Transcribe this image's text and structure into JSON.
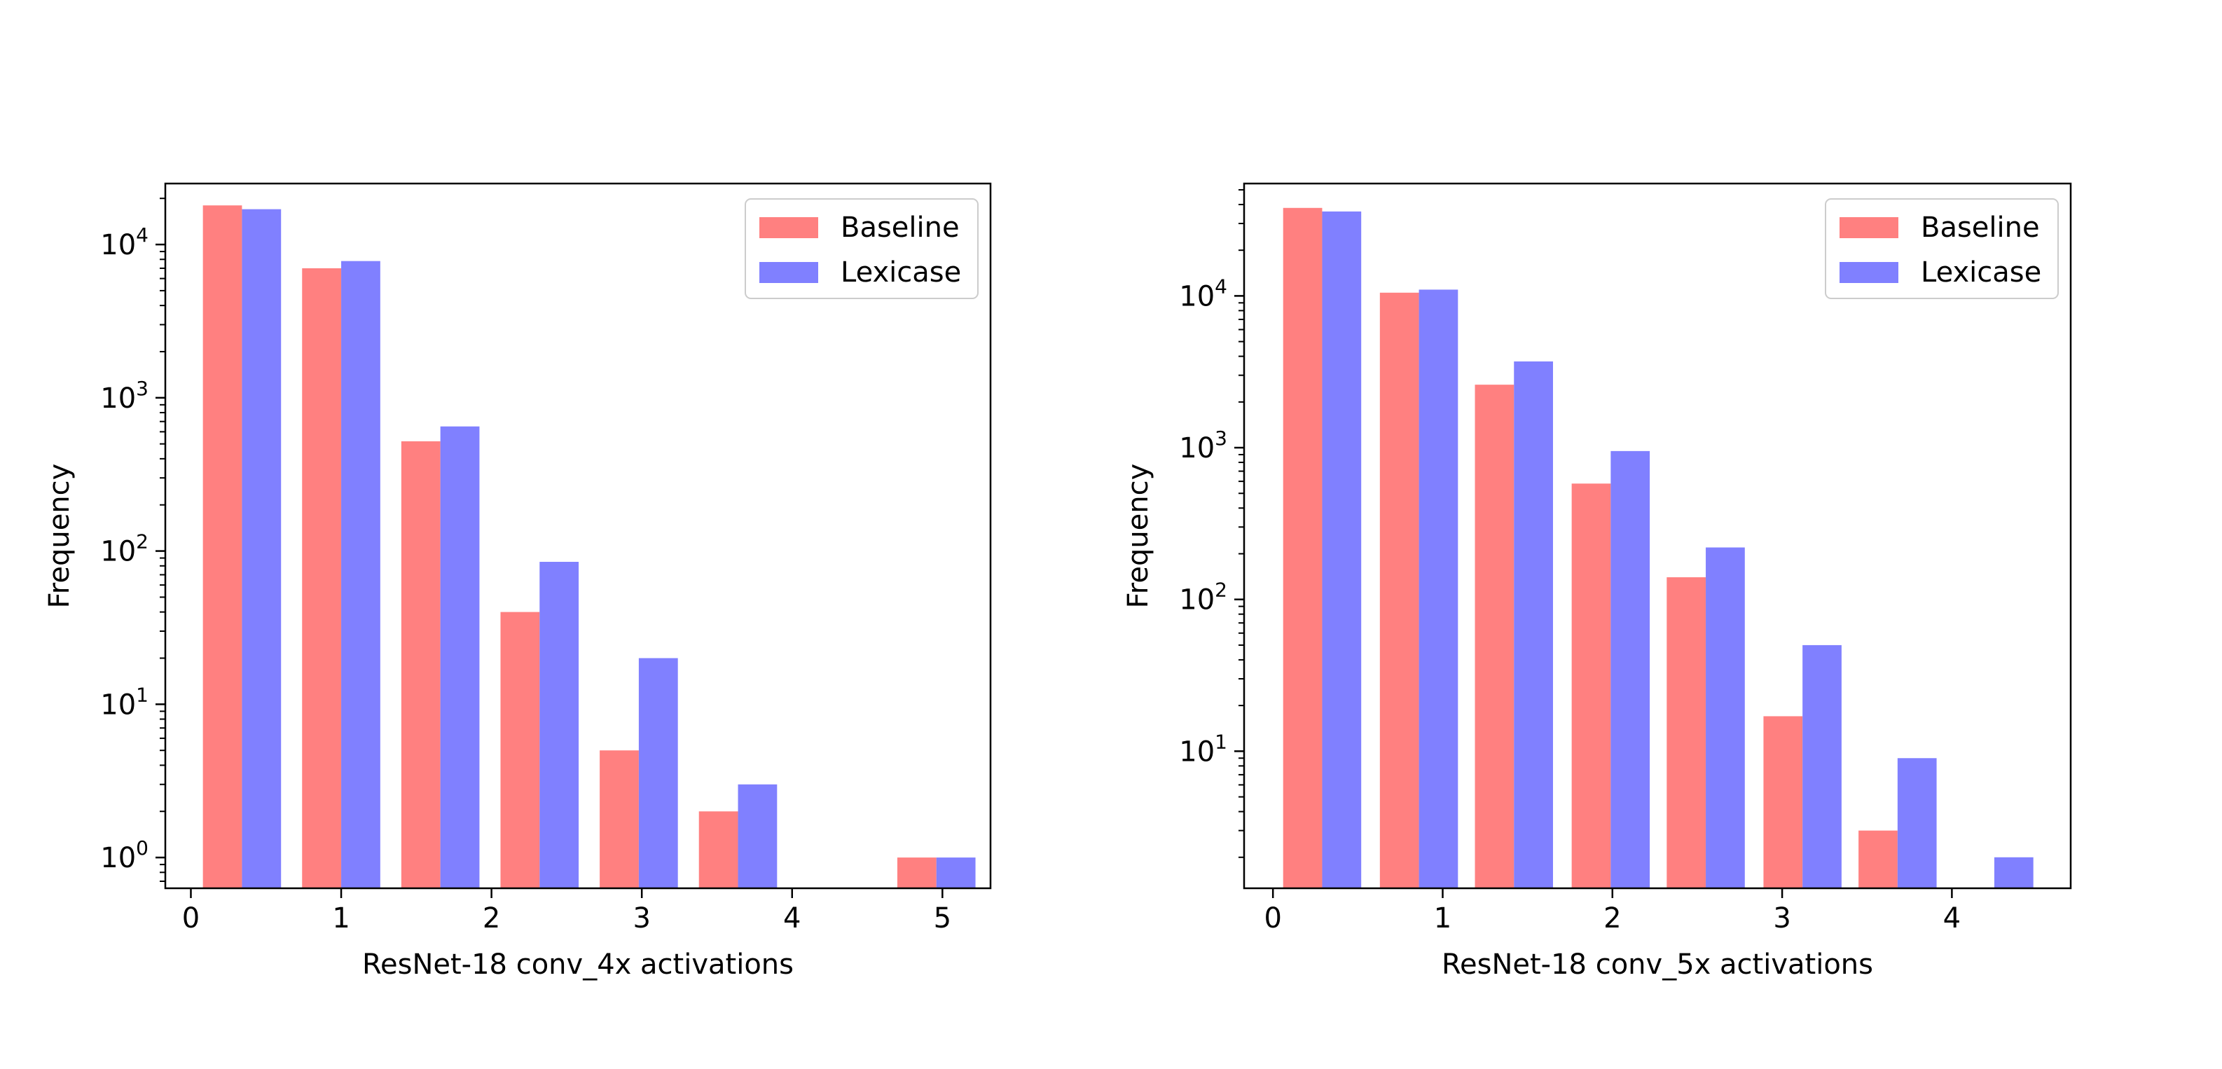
{
  "chart_data": [
    {
      "type": "bar",
      "xlabel": "ResNet-18 conv_4x activations",
      "ylabel": "Frequency",
      "yscale": "log",
      "ylim": [
        0.63,
        25000
      ],
      "xlim": [
        -0.17,
        5.32
      ],
      "bin_width": 0.52,
      "x_ticks": [
        0,
        1,
        2,
        3,
        4,
        5
      ],
      "y_ticks": [
        {
          "value": 1,
          "base": "10",
          "exp": "0"
        },
        {
          "value": 10,
          "base": "10",
          "exp": "1"
        },
        {
          "value": 100,
          "base": "10",
          "exp": "2"
        },
        {
          "value": 1000,
          "base": "10",
          "exp": "3"
        },
        {
          "value": 10000,
          "base": "10",
          "exp": "4"
        }
      ],
      "legend_position": "upper right",
      "bin_left_edges": [
        0.08,
        0.74,
        1.4,
        2.06,
        2.72,
        3.38,
        4.7
      ],
      "series": [
        {
          "name": "Baseline",
          "color": "#ff8080",
          "values": [
            18000,
            7000,
            520,
            40,
            5,
            2,
            1
          ]
        },
        {
          "name": "Lexicase",
          "color": "#8080ff",
          "values": [
            17000,
            7800,
            650,
            85,
            20,
            3,
            1
          ]
        }
      ]
    },
    {
      "type": "bar",
      "xlabel": "ResNet-18 conv_5x activations",
      "ylabel": "Frequency",
      "yscale": "log",
      "ylim": [
        1.25,
        55000
      ],
      "xlim": [
        -0.17,
        4.7
      ],
      "bin_width": 0.46,
      "x_ticks": [
        0,
        1,
        2,
        3,
        4
      ],
      "y_ticks": [
        {
          "value": 10,
          "base": "10",
          "exp": "1"
        },
        {
          "value": 100,
          "base": "10",
          "exp": "2"
        },
        {
          "value": 1000,
          "base": "10",
          "exp": "3"
        },
        {
          "value": 10000,
          "base": "10",
          "exp": "4"
        }
      ],
      "legend_position": "upper right",
      "bin_left_edges": [
        0.06,
        0.63,
        1.19,
        1.76,
        2.32,
        2.89,
        3.45,
        4.02
      ],
      "series": [
        {
          "name": "Baseline",
          "color": "#ff8080",
          "values": [
            38000,
            10500,
            2600,
            580,
            140,
            17,
            3,
            null
          ]
        },
        {
          "name": "Lexicase",
          "color": "#8080ff",
          "values": [
            36000,
            11000,
            3700,
            950,
            220,
            50,
            9,
            2
          ]
        }
      ]
    }
  ]
}
